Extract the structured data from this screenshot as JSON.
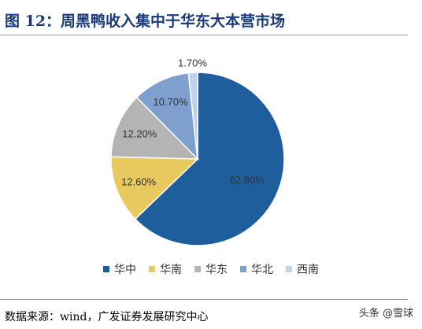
{
  "header": {
    "title": "图 12：周黑鸭收入集中于华东大本营市场"
  },
  "chart_data": {
    "type": "pie",
    "slices": [
      {
        "name": "华中",
        "value": 62.8,
        "label": "62.80%",
        "color": "#1f5e9c"
      },
      {
        "name": "华南",
        "value": 12.6,
        "label": "12.60%",
        "color": "#e8c95e"
      },
      {
        "name": "华东",
        "value": 12.2,
        "label": "12.20%",
        "color": "#b4b4b4"
      },
      {
        "name": "华北",
        "value": 10.7,
        "label": "10.70%",
        "color": "#7f9fcf"
      },
      {
        "name": "西南",
        "value": 1.7,
        "label": "1.70%",
        "color": "#bdd3ea"
      }
    ],
    "legend_position": "bottom"
  },
  "footer": {
    "source": "数据来源：wind，广发证券发展研究中心",
    "watermark": "头条 @雪球"
  }
}
